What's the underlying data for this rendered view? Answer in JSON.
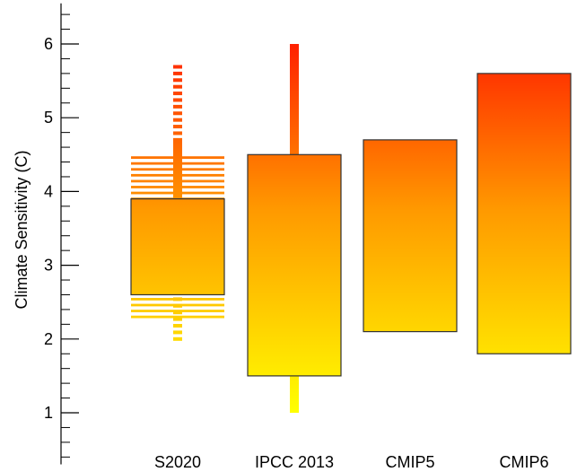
{
  "chart_data": {
    "type": "box",
    "ylabel": "Climate Sensitivity (C)",
    "ylim": [
      0.3,
      6.55
    ],
    "major_ticks": [
      1,
      2,
      3,
      4,
      5,
      6
    ],
    "minor_tick_step": 0.2,
    "grid": false,
    "color_scale": {
      "low": "#ffff00",
      "mid": "#ff9900",
      "high": "#ff2000",
      "range": [
        1,
        6
      ]
    },
    "categories": [
      "S2020",
      "IPCC 2013",
      "CMIP5",
      "CMIP6"
    ],
    "series": [
      {
        "category": "S2020",
        "box": [
          2.6,
          3.9
        ],
        "whisker_solid": [
          2.6,
          4.7
        ],
        "whisker_dashed": [
          2.0,
          5.7
        ],
        "dense_bands": [
          [
            2.3,
            2.6
          ],
          [
            3.9,
            4.47
          ]
        ]
      },
      {
        "category": "IPCC 2013",
        "box": [
          1.5,
          4.5
        ],
        "whisker_solid": [
          1.0,
          6.0
        ]
      },
      {
        "category": "CMIP5",
        "box": [
          2.1,
          4.7
        ]
      },
      {
        "category": "CMIP6",
        "box": [
          1.8,
          5.6
        ]
      }
    ]
  }
}
